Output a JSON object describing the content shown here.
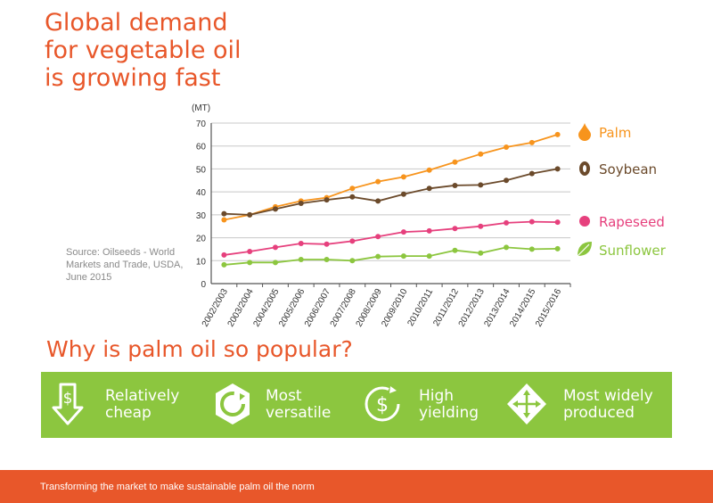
{
  "title": {
    "line1": "Global demand",
    "line2": "for vegetable oil",
    "line3": "is growing fast"
  },
  "source_note": "Source: Oilseeds - World Markets and Trade, USDA, June 2015",
  "chart_data": {
    "type": "line",
    "title": "",
    "xlabel": "",
    "ylabel": "(MT)",
    "ylim": [
      0,
      70
    ],
    "yticks": [
      0,
      10,
      20,
      30,
      40,
      50,
      60,
      70
    ],
    "grid": true,
    "legend": "right",
    "categories": [
      "2002/2003",
      "2003/2004",
      "2004/2005",
      "2005/2006",
      "2006/2007",
      "2007/2008",
      "2008/2009",
      "2009/2010",
      "2010/2011",
      "2011/2012",
      "2012/2013",
      "2013/2014",
      "2014/2015",
      "2015/2016"
    ],
    "series": [
      {
        "name": "Palm",
        "color": "#f7941d",
        "values": [
          27.8,
          30,
          33.5,
          36,
          37.5,
          41.5,
          44.5,
          46.5,
          49.5,
          53,
          56.5,
          59.5,
          61.5,
          65
        ]
      },
      {
        "name": "Soybean",
        "color": "#6b4a2b",
        "values": [
          30.5,
          30,
          32.5,
          35,
          36.5,
          37.8,
          36,
          39,
          41.5,
          42.8,
          43,
          45,
          48,
          50
        ]
      },
      {
        "name": "Rapeseed",
        "color": "#e6407d",
        "values": [
          12.5,
          14,
          15.8,
          17.5,
          17.2,
          18.5,
          20.5,
          22.5,
          23,
          24,
          25,
          26.5,
          27,
          26.8
        ]
      },
      {
        "name": "Sunflower",
        "color": "#8cc63f",
        "values": [
          8.2,
          9.2,
          9.2,
          10.5,
          10.5,
          10,
          11.8,
          12,
          12,
          14.5,
          13.3,
          15.8,
          15,
          15.2
        ]
      }
    ]
  },
  "subheading": "Why is palm oil so popular?",
  "features": [
    {
      "icon": "dollar-down-icon",
      "line1": "Relatively",
      "line2": "cheap"
    },
    {
      "icon": "versatile-cycle-icon",
      "line1": "Most",
      "line2": "versatile"
    },
    {
      "icon": "dollar-cycle-icon",
      "line1": "High",
      "line2": "yielding"
    },
    {
      "icon": "arrows-expand-icon",
      "line1": "Most widely",
      "line2": "produced"
    }
  ],
  "colors": {
    "accent": "#e8572a",
    "band": "#8cc63f",
    "grid": "#c8c8c8"
  },
  "footer": {
    "text": "Transforming the market to make sustainable palm oil the norm"
  }
}
